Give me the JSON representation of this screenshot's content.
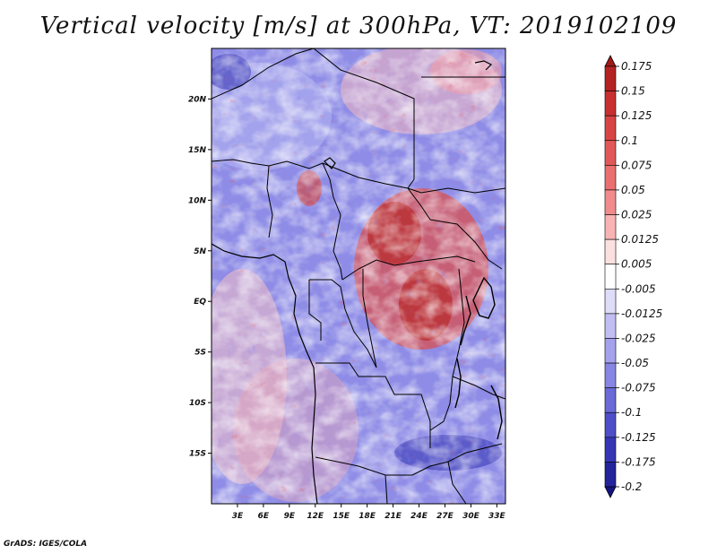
{
  "title": "Vertical velocity [m/s] at 300hPa, VT: 2019102109",
  "credit": "GrADS: IGES/COLA",
  "map": {
    "region": "Central Africa",
    "lon_range": [
      0,
      34
    ],
    "lat_range": [
      -20,
      25
    ],
    "lon_ticks": [
      {
        "value": 3,
        "label": "3E"
      },
      {
        "value": 6,
        "label": "6E"
      },
      {
        "value": 9,
        "label": "9E"
      },
      {
        "value": 12,
        "label": "12E"
      },
      {
        "value": 15,
        "label": "15E"
      },
      {
        "value": 18,
        "label": "18E"
      },
      {
        "value": 21,
        "label": "21E"
      },
      {
        "value": 24,
        "label": "24E"
      },
      {
        "value": 27,
        "label": "27E"
      },
      {
        "value": 30,
        "label": "30E"
      },
      {
        "value": 33,
        "label": "33E"
      }
    ],
    "lat_ticks": [
      {
        "value": 20,
        "label": "20N"
      },
      {
        "value": 15,
        "label": "15N"
      },
      {
        "value": 10,
        "label": "10N"
      },
      {
        "value": 5,
        "label": "5N"
      },
      {
        "value": 0,
        "label": "EQ"
      },
      {
        "value": -5,
        "label": "5S"
      },
      {
        "value": -10,
        "label": "10S"
      },
      {
        "value": -15,
        "label": "15S"
      }
    ]
  },
  "colorbar": {
    "labels": [
      "0.175",
      "0.15",
      "0.125",
      "0.1",
      "0.075",
      "0.05",
      "0.025",
      "0.0125",
      "0.005",
      "-0.005",
      "-0.0125",
      "-0.025",
      "-0.05",
      "-0.075",
      "-0.1",
      "-0.125",
      "-0.175",
      "-0.2"
    ],
    "colors": [
      "#a01818",
      "#b42222",
      "#c83030",
      "#d84444",
      "#e25858",
      "#ea7070",
      "#f28c8c",
      "#f8b4b4",
      "#fce0e0",
      "#ffffff",
      "#dedcf8",
      "#c0bef2",
      "#a4a2ec",
      "#8886e4",
      "#6a6ad8",
      "#4e4ec8",
      "#3636b4",
      "#24249c",
      "#141480"
    ]
  }
}
